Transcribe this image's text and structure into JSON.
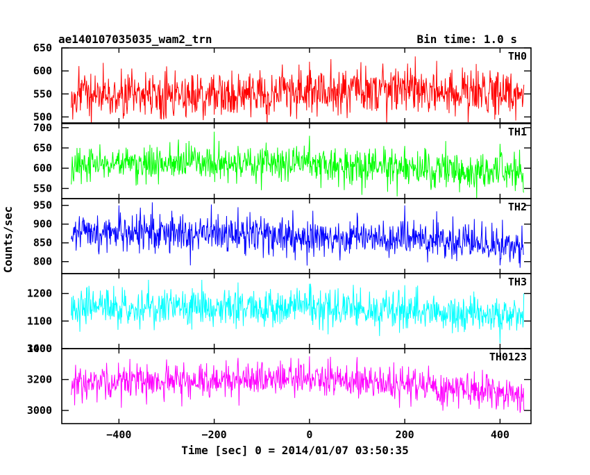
{
  "chart_data": {
    "type": "line",
    "title": "ae140107035035_wam2_trn",
    "bin_time": "Bin time: 1.0 s",
    "xlabel": "Time [sec] 0 = 2014/01/07 03:50:35",
    "ylabel": "Counts/sec",
    "xlim": [
      -520,
      465
    ],
    "x_range": [
      -500,
      450
    ],
    "x_ticks": [
      -400,
      -200,
      0,
      200,
      400
    ],
    "x_tick_labels": [
      "−400",
      "−200",
      "0",
      "200",
      "400"
    ],
    "grid": false,
    "panels": [
      {
        "name": "TH0",
        "color": "#ff0000",
        "ylim": [
          487,
          650
        ],
        "y_ticks": [
          500,
          550,
          600,
          650
        ],
        "y_tick_labels": [
          "500",
          "550",
          "600",
          "650"
        ],
        "baseline": [
          [
            -500,
            545
          ],
          [
            -250,
            548
          ],
          [
            0,
            557
          ],
          [
            200,
            560
          ],
          [
            450,
            548
          ]
        ],
        "noise_sd": 25,
        "anchors": [
          [
            -500,
            520
          ],
          [
            -450,
            590
          ],
          [
            -300,
            610
          ],
          [
            -200,
            505
          ],
          [
            0,
            620
          ],
          [
            200,
            600
          ],
          [
            350,
            615
          ],
          [
            450,
            570
          ]
        ]
      },
      {
        "name": "TH1",
        "color": "#00ff00",
        "ylim": [
          525,
          710
        ],
        "y_ticks": [
          550,
          600,
          650,
          700
        ],
        "y_tick_labels": [
          "550",
          "600",
          "650",
          "700"
        ],
        "baseline": [
          [
            -500,
            610
          ],
          [
            -200,
            612
          ],
          [
            0,
            610
          ],
          [
            200,
            600
          ],
          [
            450,
            590
          ]
        ],
        "noise_sd": 22,
        "anchors": [
          [
            -500,
            560
          ],
          [
            -200,
            690
          ],
          [
            -150,
            655
          ],
          [
            0,
            680
          ],
          [
            200,
            655
          ],
          [
            400,
            660
          ],
          [
            450,
            540
          ]
        ]
      },
      {
        "name": "TH2",
        "color": "#0000ff",
        "ylim": [
          768,
          968
        ],
        "y_ticks": [
          800,
          850,
          900,
          950
        ],
        "y_tick_labels": [
          "800",
          "850",
          "900",
          "950"
        ],
        "baseline": [
          [
            -500,
            880
          ],
          [
            -200,
            876
          ],
          [
            0,
            868
          ],
          [
            200,
            860
          ],
          [
            450,
            842
          ]
        ],
        "noise_sd": 25,
        "anchors": [
          [
            -500,
            860
          ],
          [
            -400,
            950
          ],
          [
            -330,
            958
          ],
          [
            -250,
            790
          ],
          [
            -150,
            945
          ],
          [
            100,
            930
          ],
          [
            200,
            950
          ],
          [
            400,
            790
          ],
          [
            450,
            820
          ]
        ]
      },
      {
        "name": "TH3",
        "color": "#00ffff",
        "ylim": [
          1000,
          1272
        ],
        "y_ticks": [
          1000,
          1100,
          1200
        ],
        "y_tick_labels": [
          "1000",
          "1100",
          "1200"
        ],
        "baseline": [
          [
            -500,
            1150
          ],
          [
            -200,
            1152
          ],
          [
            0,
            1150
          ],
          [
            200,
            1143
          ],
          [
            450,
            1118
          ]
        ],
        "noise_sd": 34,
        "anchors": [
          [
            -500,
            1120
          ],
          [
            -150,
            1240
          ],
          [
            0,
            1235
          ],
          [
            200,
            1230
          ],
          [
            400,
            1020
          ],
          [
            450,
            1200
          ]
        ]
      },
      {
        "name": "TH0123",
        "color": "#ff00ff",
        "ylim": [
          2915,
          3400
        ],
        "y_ticks": [
          3000,
          3200,
          3400
        ],
        "y_tick_labels": [
          "3000",
          "3200",
          "3400"
        ],
        "baseline": [
          [
            -500,
            3185
          ],
          [
            -200,
            3195
          ],
          [
            0,
            3205
          ],
          [
            200,
            3165
          ],
          [
            450,
            3100
          ]
        ],
        "noise_sd": 55,
        "anchors": [
          [
            -500,
            3100
          ],
          [
            -300,
            3330
          ],
          [
            -150,
            3340
          ],
          [
            -100,
            3310
          ],
          [
            0,
            3350
          ],
          [
            100,
            3345
          ],
          [
            250,
            3290
          ],
          [
            450,
            3000
          ]
        ]
      }
    ]
  }
}
